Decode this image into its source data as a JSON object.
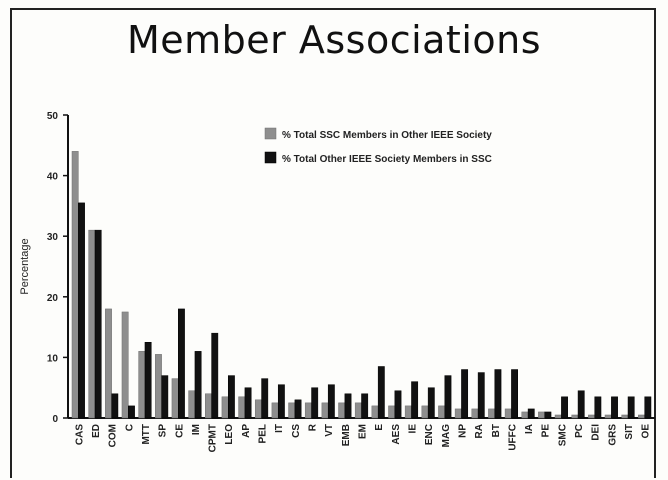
{
  "page": {
    "title": "Member Associations"
  },
  "chart_data": {
    "type": "bar",
    "title": "Member Associations",
    "xlabel": "",
    "ylabel": "Percentage",
    "ylim": [
      0,
      50
    ],
    "yticks": [
      0,
      10,
      20,
      30,
      40,
      50
    ],
    "grid": false,
    "legend_position": "top-right",
    "categories": [
      "CAS",
      "ED",
      "COM",
      "C",
      "MTT",
      "SP",
      "CE",
      "IM",
      "CPMT",
      "LEO",
      "AP",
      "PEL",
      "IT",
      "CS",
      "R",
      "VT",
      "EMB",
      "EM",
      "E",
      "AES",
      "IE",
      "ENC",
      "MAG",
      "NP",
      "RA",
      "BT",
      "UFFC",
      "IA",
      "PE",
      "SMC",
      "PC",
      "DEI",
      "GRS",
      "SIT",
      "OE"
    ],
    "series": [
      {
        "name": "% Total SSC Members in Other IEEE Society",
        "color": "#8e8e8e",
        "values": [
          44,
          31,
          18,
          17.5,
          11,
          10.5,
          6.5,
          4.5,
          4,
          3.5,
          3.5,
          3,
          2.5,
          2.5,
          2.5,
          2.5,
          2.5,
          2.5,
          2,
          2,
          2,
          2,
          2,
          1.5,
          1.5,
          1.5,
          1.5,
          1,
          1,
          0.5,
          0.5,
          0.5,
          0.5,
          0.5,
          0.5
        ]
      },
      {
        "name": "% Total Other IEEE Society Members in SSC",
        "color": "#111111",
        "values": [
          35.5,
          31,
          4,
          2,
          12.5,
          7,
          18,
          11,
          14,
          7,
          5,
          6.5,
          5.5,
          3,
          5,
          5.5,
          4,
          4,
          8.5,
          4.5,
          6,
          5,
          7,
          8,
          7.5,
          8,
          8,
          1.5,
          1,
          3.5,
          4.5,
          3.5,
          3.5,
          3.5,
          3.5
        ]
      }
    ]
  }
}
